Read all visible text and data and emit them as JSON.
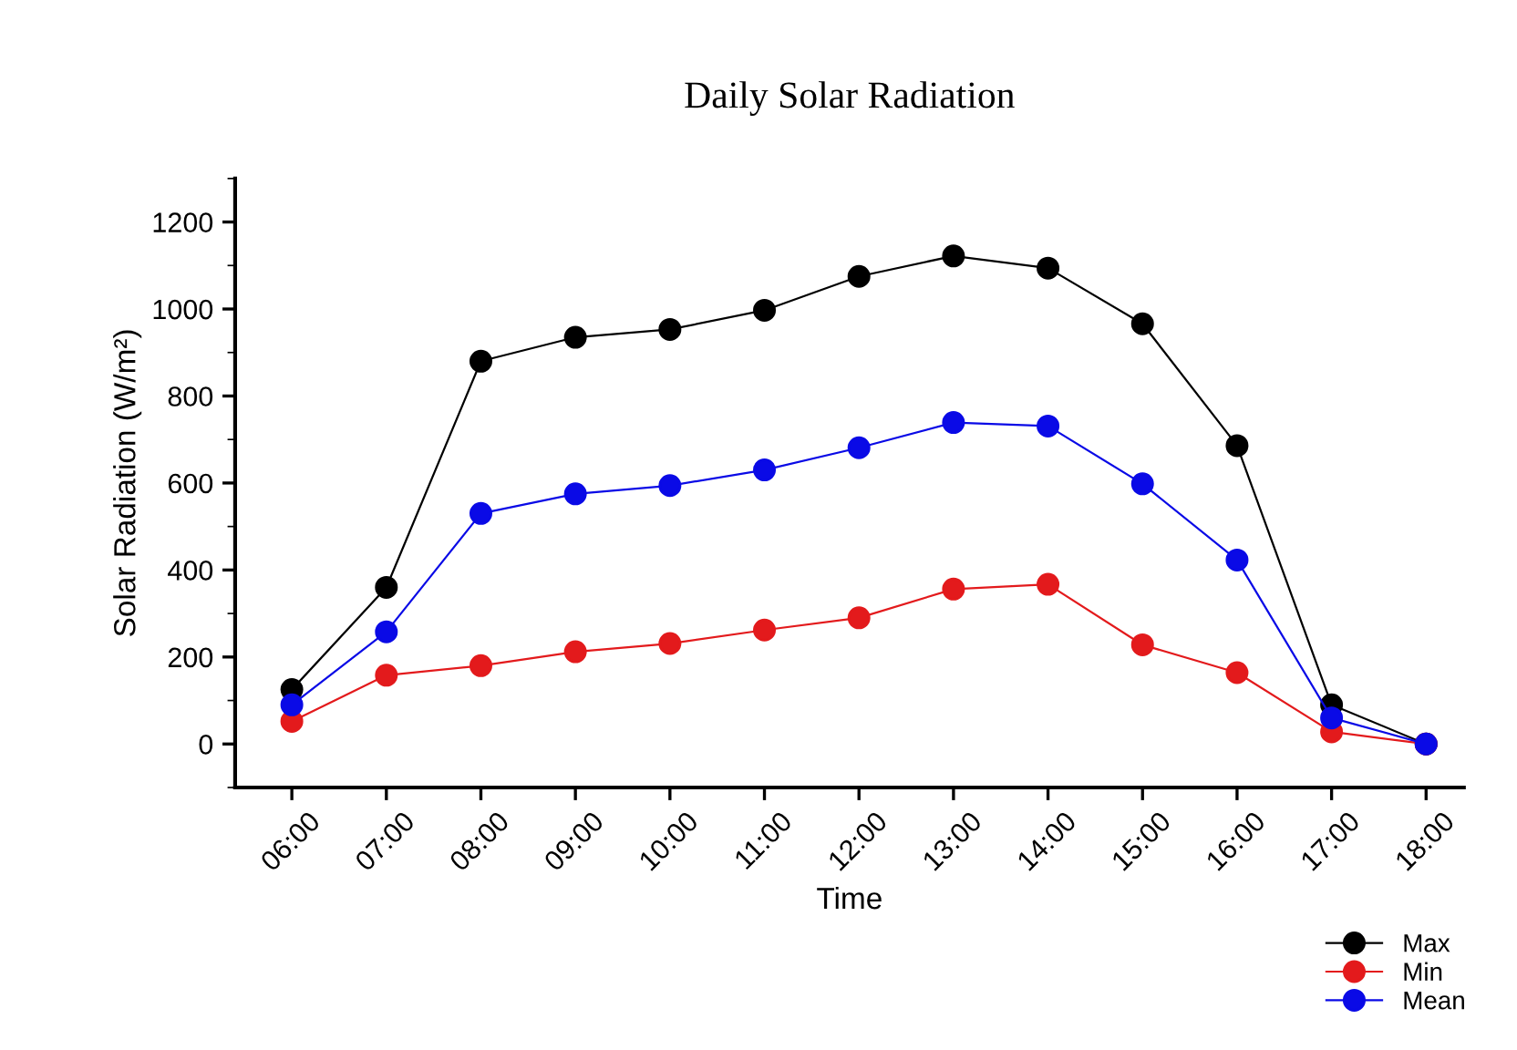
{
  "chart_data": {
    "type": "line",
    "title": "Daily Solar Radiation",
    "xlabel": "Time",
    "ylabel": "Solar Radiation (W/m²)",
    "categories": [
      "06:00",
      "07:00",
      "08:00",
      "09:00",
      "10:00",
      "11:00",
      "12:00",
      "13:00",
      "14:00",
      "15:00",
      "16:00",
      "17:00",
      "18:00"
    ],
    "series": [
      {
        "name": "Max",
        "color": "#000000",
        "values": [
          125,
          360,
          880,
          935,
          953,
          997,
          1075,
          1122,
          1094,
          966,
          686,
          90,
          0
        ]
      },
      {
        "name": "Min",
        "color": "#e31a1c",
        "values": [
          52,
          158,
          180,
          212,
          231,
          262,
          290,
          356,
          367,
          228,
          164,
          28,
          0
        ]
      },
      {
        "name": "Mean",
        "color": "#0a0ae6",
        "values": [
          90,
          258,
          530,
          575,
          594,
          630,
          681,
          739,
          731,
          598,
          423,
          60,
          0
        ]
      }
    ],
    "ylim": [
      -100,
      1300
    ],
    "yticks": [
      0,
      200,
      400,
      600,
      800,
      1000,
      1200
    ],
    "grid": false,
    "legend": "bottom right",
    "marker": "circle",
    "line_style": "solid"
  }
}
